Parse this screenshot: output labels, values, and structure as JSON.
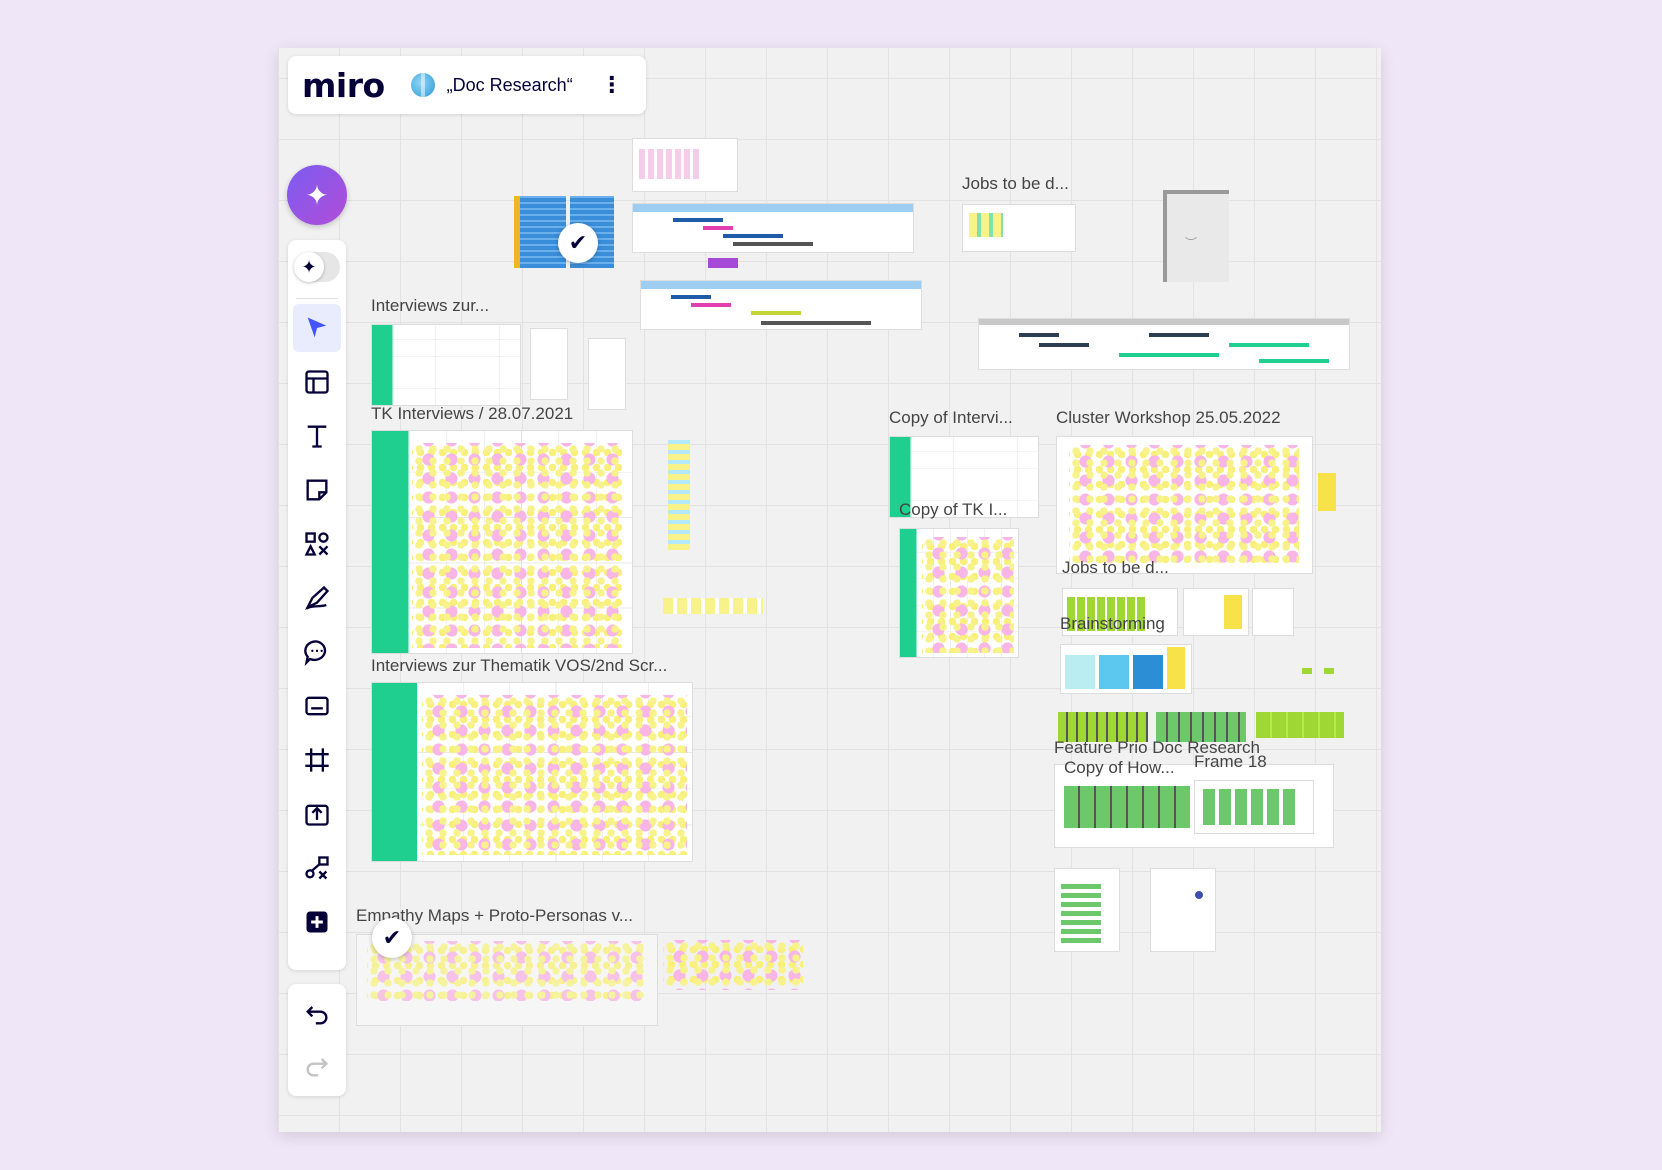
{
  "app": {
    "logo": "miro",
    "board_title": "„Doc Research“",
    "menu_icon": "more-vertical-icon"
  },
  "ai_button": {
    "icon": "sparkles-icon"
  },
  "toolbar": {
    "items": [
      {
        "name": "select-tool",
        "icon": "cursor-arrow-icon",
        "active": true
      },
      {
        "name": "templates-tool",
        "icon": "template-layout-icon"
      },
      {
        "name": "text-tool",
        "icon": "text-t-icon"
      },
      {
        "name": "sticky-note-tool",
        "icon": "sticky-note-icon"
      },
      {
        "name": "shapes-tool",
        "icon": "shapes-icon"
      },
      {
        "name": "pen-tool",
        "icon": "pen-icon"
      },
      {
        "name": "comment-tool",
        "icon": "comment-icon"
      },
      {
        "name": "card-tool",
        "icon": "card-icon"
      },
      {
        "name": "frame-tool",
        "icon": "frame-icon"
      },
      {
        "name": "upload-tool",
        "icon": "upload-icon"
      },
      {
        "name": "connect-tool",
        "icon": "mind-map-icon"
      },
      {
        "name": "more-apps-tool",
        "icon": "plus-square-icon"
      }
    ]
  },
  "history": {
    "undo_icon": "undo-icon",
    "redo_icon": "redo-icon"
  },
  "canvas": {
    "frames": {
      "jobs_top": "Jobs to be d...",
      "interviews_zur": "Interviews zur...",
      "tk_interviews": "TK Interviews / 28.07.2021",
      "interviews_thematik": "Interviews zur Thematik VOS/2nd Scr...",
      "empathy_maps": "Empathy Maps + Proto-Personas v...",
      "copy_of_intervi": "Copy of Intervi...",
      "copy_of_tk": "Copy of TK I...",
      "cluster_workshop": "Cluster Workshop 25.05.2022",
      "jobs_mid": "Jobs to be d...",
      "brainstorming": "Brainstorming",
      "feature_prio": "Feature Prio Doc Research",
      "copy_of_how": "Copy of How...",
      "frame_18": "Frame 18"
    }
  }
}
